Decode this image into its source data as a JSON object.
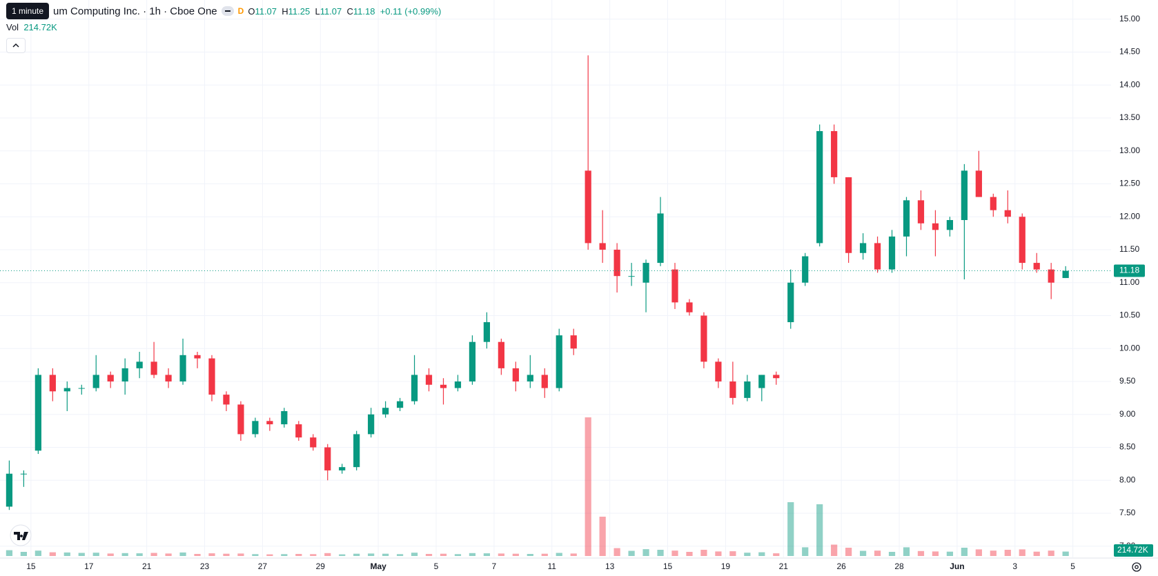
{
  "tooltip": "1 minute",
  "header": {
    "symbol": "um Computing Inc. · 1h · Cboe One",
    "badge": "D",
    "ohlc_labels": [
      "O",
      "H",
      "L",
      "C"
    ],
    "change": "+0.11 (+0.99%)",
    "volume_title": "Vol"
  },
  "chart_data": {
    "type": "candlestick",
    "up_color": "#089981",
    "down_color": "#f23645",
    "grid": true,
    "xlim": [
      -1.07,
      37.32
    ],
    "ylim": [
      6.83,
      15.29
    ],
    "xticks": [
      {
        "value": 0,
        "label": "15"
      },
      {
        "value": 2,
        "label": "17"
      },
      {
        "value": 4,
        "label": "21"
      },
      {
        "value": 6,
        "label": "23"
      },
      {
        "value": 8,
        "label": "27"
      },
      {
        "value": 10,
        "label": "29"
      },
      {
        "value": 12,
        "label": "May"
      },
      {
        "value": 14,
        "label": "5"
      },
      {
        "value": 16,
        "label": "7"
      },
      {
        "value": 18,
        "label": "11"
      },
      {
        "value": 20,
        "label": "13"
      },
      {
        "value": 22,
        "label": "15"
      },
      {
        "value": 24,
        "label": "19"
      },
      {
        "value": 26,
        "label": "21"
      },
      {
        "value": 28,
        "label": "26"
      },
      {
        "value": 30,
        "label": "28"
      },
      {
        "value": 32,
        "label": "Jun"
      },
      {
        "value": 34,
        "label": "3"
      },
      {
        "value": 36,
        "label": "5"
      }
    ],
    "yticks": [
      {
        "value": 7,
        "label": "7.00"
      },
      {
        "value": 7.5,
        "label": "7.50"
      },
      {
        "value": 8,
        "label": "8.00"
      },
      {
        "value": 8.5,
        "label": "8.50"
      },
      {
        "value": 9,
        "label": "9.00"
      },
      {
        "value": 9.5,
        "label": "9.50"
      },
      {
        "value": 10,
        "label": "10.00"
      },
      {
        "value": 10.5,
        "label": "10.50"
      },
      {
        "value": 11,
        "label": "11.00"
      },
      {
        "value": 11.5,
        "label": "11.50"
      },
      {
        "value": 12,
        "label": "12.00"
      },
      {
        "value": 12.5,
        "label": "12.50"
      },
      {
        "value": 13,
        "label": "13.00"
      },
      {
        "value": 13.5,
        "label": "13.50"
      },
      {
        "value": 14,
        "label": "14.00"
      },
      {
        "value": 14.5,
        "label": "14.50"
      },
      {
        "value": 15,
        "label": "15.00"
      }
    ],
    "x": [
      -0.75,
      -0.25,
      0.25,
      0.75,
      1.25,
      1.75,
      2.25,
      2.75,
      3.25,
      3.75,
      4.25,
      4.75,
      5.25,
      5.75,
      6.25,
      6.75,
      7.25,
      7.75,
      8.25,
      8.75,
      9.25,
      9.75,
      10.25,
      10.75,
      11.25,
      11.75,
      12.25,
      12.75,
      13.25,
      13.75,
      14.25,
      14.75,
      15.25,
      15.75,
      16.25,
      16.75,
      17.25,
      17.75,
      18.25,
      18.75,
      19.25,
      19.75,
      20.25,
      20.75,
      21.25,
      21.75,
      22.25,
      22.75,
      23.25,
      23.75,
      24.25,
      24.75,
      25.25,
      25.75,
      26.25,
      26.75,
      27.25,
      27.75,
      28.25,
      28.75,
      29.25,
      29.75,
      30.25,
      30.75,
      31.25,
      31.75,
      32.25,
      32.75,
      33.25,
      33.75,
      34.25,
      34.75,
      35.25,
      35.75
    ],
    "open": [
      7.6,
      8.1,
      8.45,
      9.6,
      9.35,
      9.4,
      9.4,
      9.6,
      9.5,
      9.7,
      9.8,
      9.6,
      9.5,
      9.9,
      9.85,
      9.3,
      9.15,
      8.7,
      8.9,
      8.85,
      8.85,
      8.65,
      8.5,
      8.15,
      8.2,
      8.7,
      9.0,
      9.1,
      9.2,
      9.6,
      9.45,
      9.4,
      9.5,
      10.1,
      10.1,
      9.7,
      9.5,
      9.6,
      9.4,
      10.2,
      12.7,
      11.6,
      11.5,
      11.1,
      11.0,
      11.3,
      11.2,
      10.7,
      10.5,
      9.8,
      9.5,
      9.25,
      9.4,
      9.6,
      10.4,
      11.0,
      11.6,
      13.3,
      12.6,
      11.45,
      11.6,
      11.2,
      11.7,
      12.25,
      11.9,
      11.8,
      11.95,
      12.7,
      12.3,
      12.1,
      12.0,
      11.3,
      11.2,
      11.07
    ],
    "high": [
      8.3,
      8.15,
      9.7,
      9.7,
      9.5,
      9.45,
      9.9,
      9.65,
      9.85,
      9.95,
      10.1,
      9.7,
      10.15,
      9.95,
      9.9,
      9.35,
      9.2,
      8.95,
      8.95,
      9.1,
      8.9,
      8.7,
      8.55,
      8.25,
      8.75,
      9.1,
      9.2,
      9.25,
      9.9,
      9.7,
      9.55,
      9.6,
      10.2,
      10.55,
      10.15,
      9.8,
      9.9,
      9.7,
      10.3,
      10.3,
      14.45,
      12.1,
      11.6,
      11.3,
      11.35,
      12.3,
      11.3,
      10.75,
      10.55,
      9.85,
      9.8,
      9.6,
      9.6,
      9.65,
      11.2,
      11.45,
      13.4,
      13.4,
      12.6,
      11.75,
      11.7,
      11.8,
      12.3,
      12.4,
      12.1,
      12.0,
      12.8,
      13.0,
      12.35,
      12.4,
      12.05,
      11.45,
      11.3,
      11.25
    ],
    "low": [
      7.55,
      7.9,
      8.4,
      9.2,
      9.05,
      9.3,
      9.35,
      9.4,
      9.3,
      9.55,
      9.55,
      9.4,
      9.45,
      9.7,
      9.2,
      9.05,
      8.6,
      8.65,
      8.75,
      8.8,
      8.6,
      8.45,
      8.0,
      8.1,
      8.15,
      8.65,
      8.95,
      9.05,
      9.15,
      9.35,
      9.15,
      9.35,
      9.45,
      10.0,
      9.6,
      9.35,
      9.4,
      9.25,
      9.35,
      9.9,
      11.5,
      11.3,
      10.85,
      10.95,
      10.55,
      11.25,
      10.6,
      10.5,
      9.7,
      9.4,
      9.15,
      9.2,
      9.2,
      9.45,
      10.3,
      10.95,
      11.55,
      12.5,
      11.3,
      11.35,
      11.15,
      11.15,
      11.4,
      11.8,
      11.4,
      11.7,
      11.05,
      12.3,
      12.0,
      11.9,
      11.2,
      11.15,
      10.75,
      11.07
    ],
    "close": [
      8.1,
      8.1,
      9.6,
      9.35,
      9.4,
      9.4,
      9.6,
      9.5,
      9.7,
      9.8,
      9.6,
      9.5,
      9.9,
      9.85,
      9.3,
      9.15,
      8.7,
      8.9,
      8.85,
      9.05,
      8.65,
      8.5,
      8.15,
      8.2,
      8.7,
      9.0,
      9.1,
      9.2,
      9.6,
      9.45,
      9.4,
      9.5,
      10.1,
      10.4,
      9.7,
      9.5,
      9.6,
      9.4,
      10.2,
      10.0,
      11.6,
      11.5,
      11.1,
      11.1,
      11.3,
      12.05,
      10.7,
      10.55,
      9.8,
      9.5,
      9.25,
      9.5,
      9.6,
      9.55,
      11.0,
      11.4,
      13.3,
      12.6,
      11.45,
      11.6,
      11.2,
      11.7,
      12.25,
      11.9,
      11.8,
      11.95,
      12.7,
      12.3,
      12.1,
      12.0,
      11.3,
      11.2,
      11.0,
      11.18
    ],
    "volume": [
      280000,
      200000,
      260000,
      180000,
      170000,
      150000,
      160000,
      120000,
      140000,
      130000,
      150000,
      120000,
      170000,
      100000,
      130000,
      110000,
      120000,
      90000,
      80000,
      90000,
      100000,
      90000,
      140000,
      80000,
      110000,
      120000,
      110000,
      90000,
      160000,
      100000,
      110000,
      90000,
      140000,
      130000,
      120000,
      110000,
      100000,
      110000,
      150000,
      120000,
      6700000,
      1900000,
      380000,
      250000,
      330000,
      300000,
      260000,
      200000,
      300000,
      220000,
      230000,
      160000,
      180000,
      130000,
      2600000,
      420000,
      2500000,
      550000,
      400000,
      250000,
      260000,
      200000,
      420000,
      240000,
      220000,
      210000,
      400000,
      320000,
      260000,
      300000,
      320000,
      210000,
      260000,
      214720
    ],
    "last_volume_label": "214.72K"
  }
}
